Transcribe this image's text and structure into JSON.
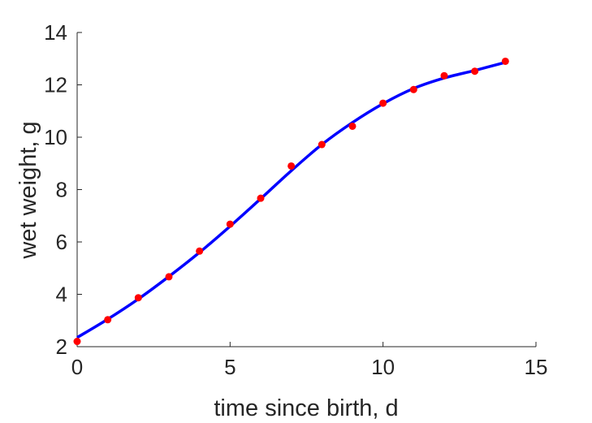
{
  "chart_data": {
    "type": "scatter",
    "title": "",
    "xlabel": "time since birth, d",
    "ylabel": "wet weight, g",
    "xlim": [
      0,
      15
    ],
    "ylim": [
      2,
      14
    ],
    "xticks": [
      "0",
      "5",
      "10",
      "15"
    ],
    "yticks": [
      "2",
      "4",
      "6",
      "8",
      "10",
      "12",
      "14"
    ],
    "grid": false,
    "legend": "none",
    "series": [
      {
        "kind": "points",
        "color": "#ff0000",
        "points": [
          [
            0,
            2.2
          ],
          [
            1,
            3.03
          ],
          [
            2,
            3.87
          ],
          [
            3,
            4.67
          ],
          [
            4,
            5.65
          ],
          [
            5,
            6.68
          ],
          [
            6,
            7.67
          ],
          [
            7,
            8.9
          ],
          [
            8,
            9.72
          ],
          [
            9,
            10.42
          ],
          [
            10,
            11.3
          ],
          [
            11,
            11.82
          ],
          [
            12,
            12.35
          ],
          [
            13,
            12.52
          ],
          [
            14,
            12.9
          ]
        ]
      },
      {
        "kind": "line",
        "color": "#0000ff",
        "points": [
          [
            0,
            2.35
          ],
          [
            1,
            3.05
          ],
          [
            2,
            3.82
          ],
          [
            3,
            4.68
          ],
          [
            4,
            5.6
          ],
          [
            5,
            6.6
          ],
          [
            6,
            7.65
          ],
          [
            7,
            8.72
          ],
          [
            8,
            9.72
          ],
          [
            9,
            10.56
          ],
          [
            10,
            11.28
          ],
          [
            11,
            11.86
          ],
          [
            12,
            12.26
          ],
          [
            13,
            12.55
          ],
          [
            14,
            12.86
          ]
        ]
      }
    ]
  }
}
